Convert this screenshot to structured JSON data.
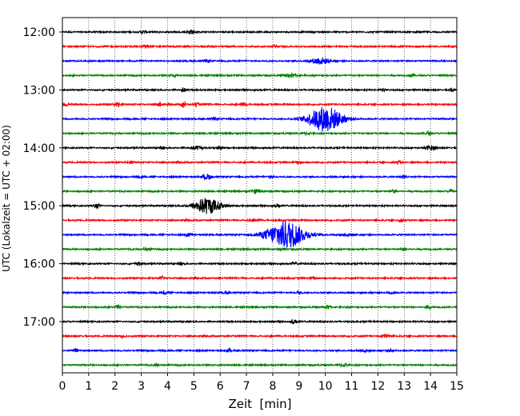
{
  "chart_data": {
    "type": "line",
    "title": "",
    "xlabel": "Zeit  [min]",
    "ylabel": "UTC (Lokalzeit = UTC + 02:00)",
    "xlim": [
      0,
      15
    ],
    "x_ticks": [
      0,
      1,
      2,
      3,
      4,
      5,
      6,
      7,
      8,
      9,
      10,
      11,
      12,
      13,
      14,
      15
    ],
    "x_tick_labels": [
      "0",
      "1",
      "2",
      "3",
      "4",
      "5",
      "6",
      "7",
      "8",
      "9",
      "10",
      "11",
      "12",
      "13",
      "14",
      "15"
    ],
    "y_tick_labels": [
      "12:00",
      "13:00",
      "14:00",
      "15:00",
      "16:00",
      "17:00"
    ],
    "y_tick_rows": [
      0,
      4,
      8,
      12,
      16,
      20
    ],
    "vertical_grid": "dotted",
    "colors": [
      "#000000",
      "#ff0000",
      "#0000ff",
      "#008000"
    ],
    "series": [
      {
        "start": "12:00",
        "color": "#000000",
        "bursts": [
          {
            "t": 3.1,
            "a": 0.35,
            "w": 0.08
          },
          {
            "t": 4.9,
            "a": 0.5,
            "w": 0.1
          }
        ]
      },
      {
        "start": "12:15",
        "color": "#ff0000",
        "bursts": [
          {
            "t": 3.2,
            "a": 0.4,
            "w": 0.08
          },
          {
            "t": 8.1,
            "a": 0.45,
            "w": 0.08
          }
        ]
      },
      {
        "start": "12:30",
        "color": "#0000ff",
        "bursts": [
          {
            "t": 5.5,
            "a": 0.3,
            "w": 0.08
          },
          {
            "t": 9.8,
            "a": 0.9,
            "w": 0.25
          }
        ]
      },
      {
        "start": "12:45",
        "color": "#008000",
        "bursts": [
          {
            "t": 4.2,
            "a": 0.3,
            "w": 0.08
          },
          {
            "t": 8.7,
            "a": 0.4,
            "w": 0.2
          },
          {
            "t": 13.3,
            "a": 0.4,
            "w": 0.08
          }
        ]
      },
      {
        "start": "13:00",
        "color": "#000000",
        "bursts": [
          {
            "t": 4.6,
            "a": 0.55,
            "w": 0.06
          },
          {
            "t": 12.2,
            "a": 0.35,
            "w": 0.06
          },
          {
            "t": 14.8,
            "a": 0.45,
            "w": 0.06
          }
        ]
      },
      {
        "start": "13:15",
        "color": "#ff0000",
        "bursts": [
          {
            "t": 0.1,
            "a": 0.5,
            "w": 0.06
          },
          {
            "t": 2.1,
            "a": 0.55,
            "w": 0.08
          },
          {
            "t": 3.7,
            "a": 0.5,
            "w": 0.06
          },
          {
            "t": 4.6,
            "a": 1.0,
            "w": 0.05
          },
          {
            "t": 5.1,
            "a": 0.5,
            "w": 0.06
          },
          {
            "t": 6.9,
            "a": 0.45,
            "w": 0.08
          }
        ]
      },
      {
        "start": "13:30",
        "color": "#0000ff",
        "bursts": [
          {
            "t": 5.8,
            "a": 0.3,
            "w": 0.08
          },
          {
            "t": 10.0,
            "a": 3.5,
            "w": 0.45
          }
        ]
      },
      {
        "start": "13:45",
        "color": "#008000",
        "bursts": [
          {
            "t": 9.3,
            "a": 0.35,
            "w": 0.08
          },
          {
            "t": 13.9,
            "a": 0.4,
            "w": 0.08
          }
        ]
      },
      {
        "start": "14:00",
        "color": "#000000",
        "bursts": [
          {
            "t": 3.8,
            "a": 0.3,
            "w": 0.08
          },
          {
            "t": 5.1,
            "a": 0.45,
            "w": 0.15
          },
          {
            "t": 6.0,
            "a": 0.35,
            "w": 0.1
          },
          {
            "t": 14.0,
            "a": 0.6,
            "w": 0.12
          }
        ]
      },
      {
        "start": "14:15",
        "color": "#ff0000",
        "bursts": [
          {
            "t": 2.6,
            "a": 0.35,
            "w": 0.08
          },
          {
            "t": 9.0,
            "a": 0.3,
            "w": 0.08
          },
          {
            "t": 12.8,
            "a": 0.3,
            "w": 0.08
          }
        ]
      },
      {
        "start": "14:30",
        "color": "#0000ff",
        "bursts": [
          {
            "t": 3.0,
            "a": 0.3,
            "w": 0.08
          },
          {
            "t": 5.5,
            "a": 0.7,
            "w": 0.12
          },
          {
            "t": 7.9,
            "a": 0.35,
            "w": 0.08
          },
          {
            "t": 13.0,
            "a": 0.3,
            "w": 0.08
          }
        ]
      },
      {
        "start": "14:45",
        "color": "#008000",
        "bursts": [
          {
            "t": 7.4,
            "a": 0.5,
            "w": 0.15
          },
          {
            "t": 12.6,
            "a": 0.35,
            "w": 0.08
          },
          {
            "t": 14.8,
            "a": 0.5,
            "w": 0.06
          }
        ]
      },
      {
        "start": "15:00",
        "color": "#000000",
        "bursts": [
          {
            "t": 1.3,
            "a": 0.6,
            "w": 0.08
          },
          {
            "t": 5.5,
            "a": 2.2,
            "w": 0.35
          },
          {
            "t": 8.2,
            "a": 0.3,
            "w": 0.08
          }
        ]
      },
      {
        "start": "15:15",
        "color": "#ff0000",
        "bursts": [
          {
            "t": 7.3,
            "a": 0.35,
            "w": 0.1
          },
          {
            "t": 12.9,
            "a": 0.35,
            "w": 0.08
          }
        ]
      },
      {
        "start": "15:30",
        "color": "#0000ff",
        "bursts": [
          {
            "t": 4.8,
            "a": 0.45,
            "w": 0.1
          },
          {
            "t": 8.5,
            "a": 3.8,
            "w": 0.5
          },
          {
            "t": 10.8,
            "a": 0.3,
            "w": 0.2
          }
        ]
      },
      {
        "start": "15:45",
        "color": "#008000",
        "bursts": [
          {
            "t": 3.2,
            "a": 0.4,
            "w": 0.1
          },
          {
            "t": 8.3,
            "a": 0.3,
            "w": 0.08
          },
          {
            "t": 13.0,
            "a": 0.35,
            "w": 0.08
          }
        ]
      },
      {
        "start": "16:00",
        "color": "#000000",
        "bursts": [
          {
            "t": 2.9,
            "a": 0.45,
            "w": 0.08
          },
          {
            "t": 4.5,
            "a": 0.3,
            "w": 0.08
          },
          {
            "t": 8.8,
            "a": 0.3,
            "w": 0.08
          }
        ]
      },
      {
        "start": "16:15",
        "color": "#ff0000",
        "bursts": [
          {
            "t": 3.8,
            "a": 0.35,
            "w": 0.08
          },
          {
            "t": 9.5,
            "a": 0.3,
            "w": 0.08
          }
        ]
      },
      {
        "start": "16:30",
        "color": "#0000ff",
        "bursts": [
          {
            "t": 3.9,
            "a": 0.3,
            "w": 0.08
          },
          {
            "t": 6.2,
            "a": 0.3,
            "w": 0.08
          },
          {
            "t": 9.0,
            "a": 0.45,
            "w": 0.06
          },
          {
            "t": 12.5,
            "a": 0.35,
            "w": 0.08
          }
        ]
      },
      {
        "start": "16:45",
        "color": "#008000",
        "bursts": [
          {
            "t": 2.1,
            "a": 0.4,
            "w": 0.08
          },
          {
            "t": 10.1,
            "a": 0.4,
            "w": 0.08
          },
          {
            "t": 13.9,
            "a": 0.4,
            "w": 0.08
          }
        ]
      },
      {
        "start": "17:00",
        "color": "#000000",
        "bursts": [
          {
            "t": 8.8,
            "a": 0.5,
            "w": 0.08
          }
        ]
      },
      {
        "start": "17:15",
        "color": "#ff0000",
        "bursts": [
          {
            "t": 2.3,
            "a": 0.4,
            "w": 0.08
          },
          {
            "t": 12.3,
            "a": 0.4,
            "w": 0.1
          }
        ]
      },
      {
        "start": "17:30",
        "color": "#0000ff",
        "bursts": [
          {
            "t": 0.5,
            "a": 0.4,
            "w": 0.08
          },
          {
            "t": 6.3,
            "a": 0.35,
            "w": 0.08
          },
          {
            "t": 11.5,
            "a": 0.35,
            "w": 0.08
          },
          {
            "t": 12.5,
            "a": 0.3,
            "w": 0.08
          }
        ]
      },
      {
        "start": "17:45",
        "color": "#008000",
        "bursts": [
          {
            "t": 3.6,
            "a": 0.35,
            "w": 0.08
          },
          {
            "t": 10.7,
            "a": 0.4,
            "w": 0.12
          }
        ]
      }
    ]
  }
}
